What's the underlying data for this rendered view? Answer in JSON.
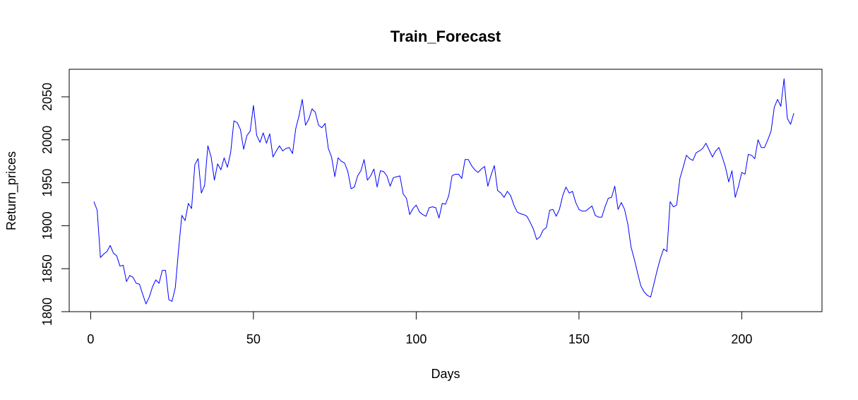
{
  "chart_data": {
    "type": "line",
    "title": "Train_Forecast",
    "xlabel": "Days",
    "ylabel": "Return_prices",
    "xlim": [
      1,
      216
    ],
    "ylim": [
      1800,
      2070
    ],
    "x_ticks": [
      0,
      50,
      100,
      150,
      200
    ],
    "y_ticks": [
      1800,
      1850,
      1900,
      1950,
      2000,
      2050
    ],
    "grid": false,
    "legend": "none",
    "series": [
      {
        "color": "#0000ff",
        "x_start": 1,
        "values": [
          1928,
          1918,
          1863,
          1867,
          1870,
          1877,
          1868,
          1865,
          1853,
          1854,
          1835,
          1842,
          1840,
          1833,
          1832,
          1820,
          1809,
          1817,
          1829,
          1837,
          1833,
          1848,
          1848,
          1814,
          1812,
          1828,
          1872,
          1912,
          1906,
          1926,
          1920,
          1971,
          1978,
          1938,
          1947,
          1993,
          1980,
          1953,
          1972,
          1965,
          1979,
          1968,
          1985,
          2022,
          2020,
          2012,
          1989,
          2005,
          2010,
          2040,
          2005,
          1997,
          2008,
          1996,
          2007,
          1980,
          1987,
          1993,
          1987,
          1990,
          1991,
          1984,
          2013,
          2028,
          2047,
          2017,
          2024,
          2036,
          2032,
          2017,
          2014,
          2019,
          1990,
          1980,
          1957,
          1979,
          1975,
          1973,
          1963,
          1943,
          1945,
          1958,
          1964,
          1977,
          1953,
          1958,
          1966,
          1945,
          1964,
          1963,
          1958,
          1946,
          1956,
          1957,
          1958,
          1937,
          1932,
          1913,
          1920,
          1924,
          1916,
          1913,
          1911,
          1921,
          1922,
          1921,
          1909,
          1926,
          1925,
          1935,
          1958,
          1960,
          1960,
          1955,
          1977,
          1977,
          1970,
          1965,
          1962,
          1966,
          1969,
          1946,
          1959,
          1970,
          1941,
          1938,
          1933,
          1940,
          1935,
          1924,
          1916,
          1914,
          1913,
          1911,
          1904,
          1896,
          1884,
          1887,
          1895,
          1898,
          1918,
          1919,
          1911,
          1919,
          1935,
          1945,
          1938,
          1940,
          1927,
          1919,
          1917,
          1917,
          1920,
          1923,
          1912,
          1910,
          1910,
          1922,
          1932,
          1933,
          1946,
          1919,
          1927,
          1919,
          1902,
          1875,
          1861,
          1845,
          1830,
          1823,
          1819,
          1817,
          1832,
          1848,
          1862,
          1873,
          1870,
          1928,
          1922,
          1924,
          1955,
          1968,
          1982,
          1978,
          1976,
          1985,
          1987,
          1990,
          1996,
          1988,
          1980,
          1987,
          1991,
          1980,
          1968,
          1951,
          1964,
          1933,
          1946,
          1962,
          1960,
          1983,
          1982,
          1978,
          2000,
          1991,
          1991,
          2000,
          2010,
          2038,
          2047,
          2039,
          2071,
          2025,
          2018,
          2031
        ]
      }
    ]
  }
}
